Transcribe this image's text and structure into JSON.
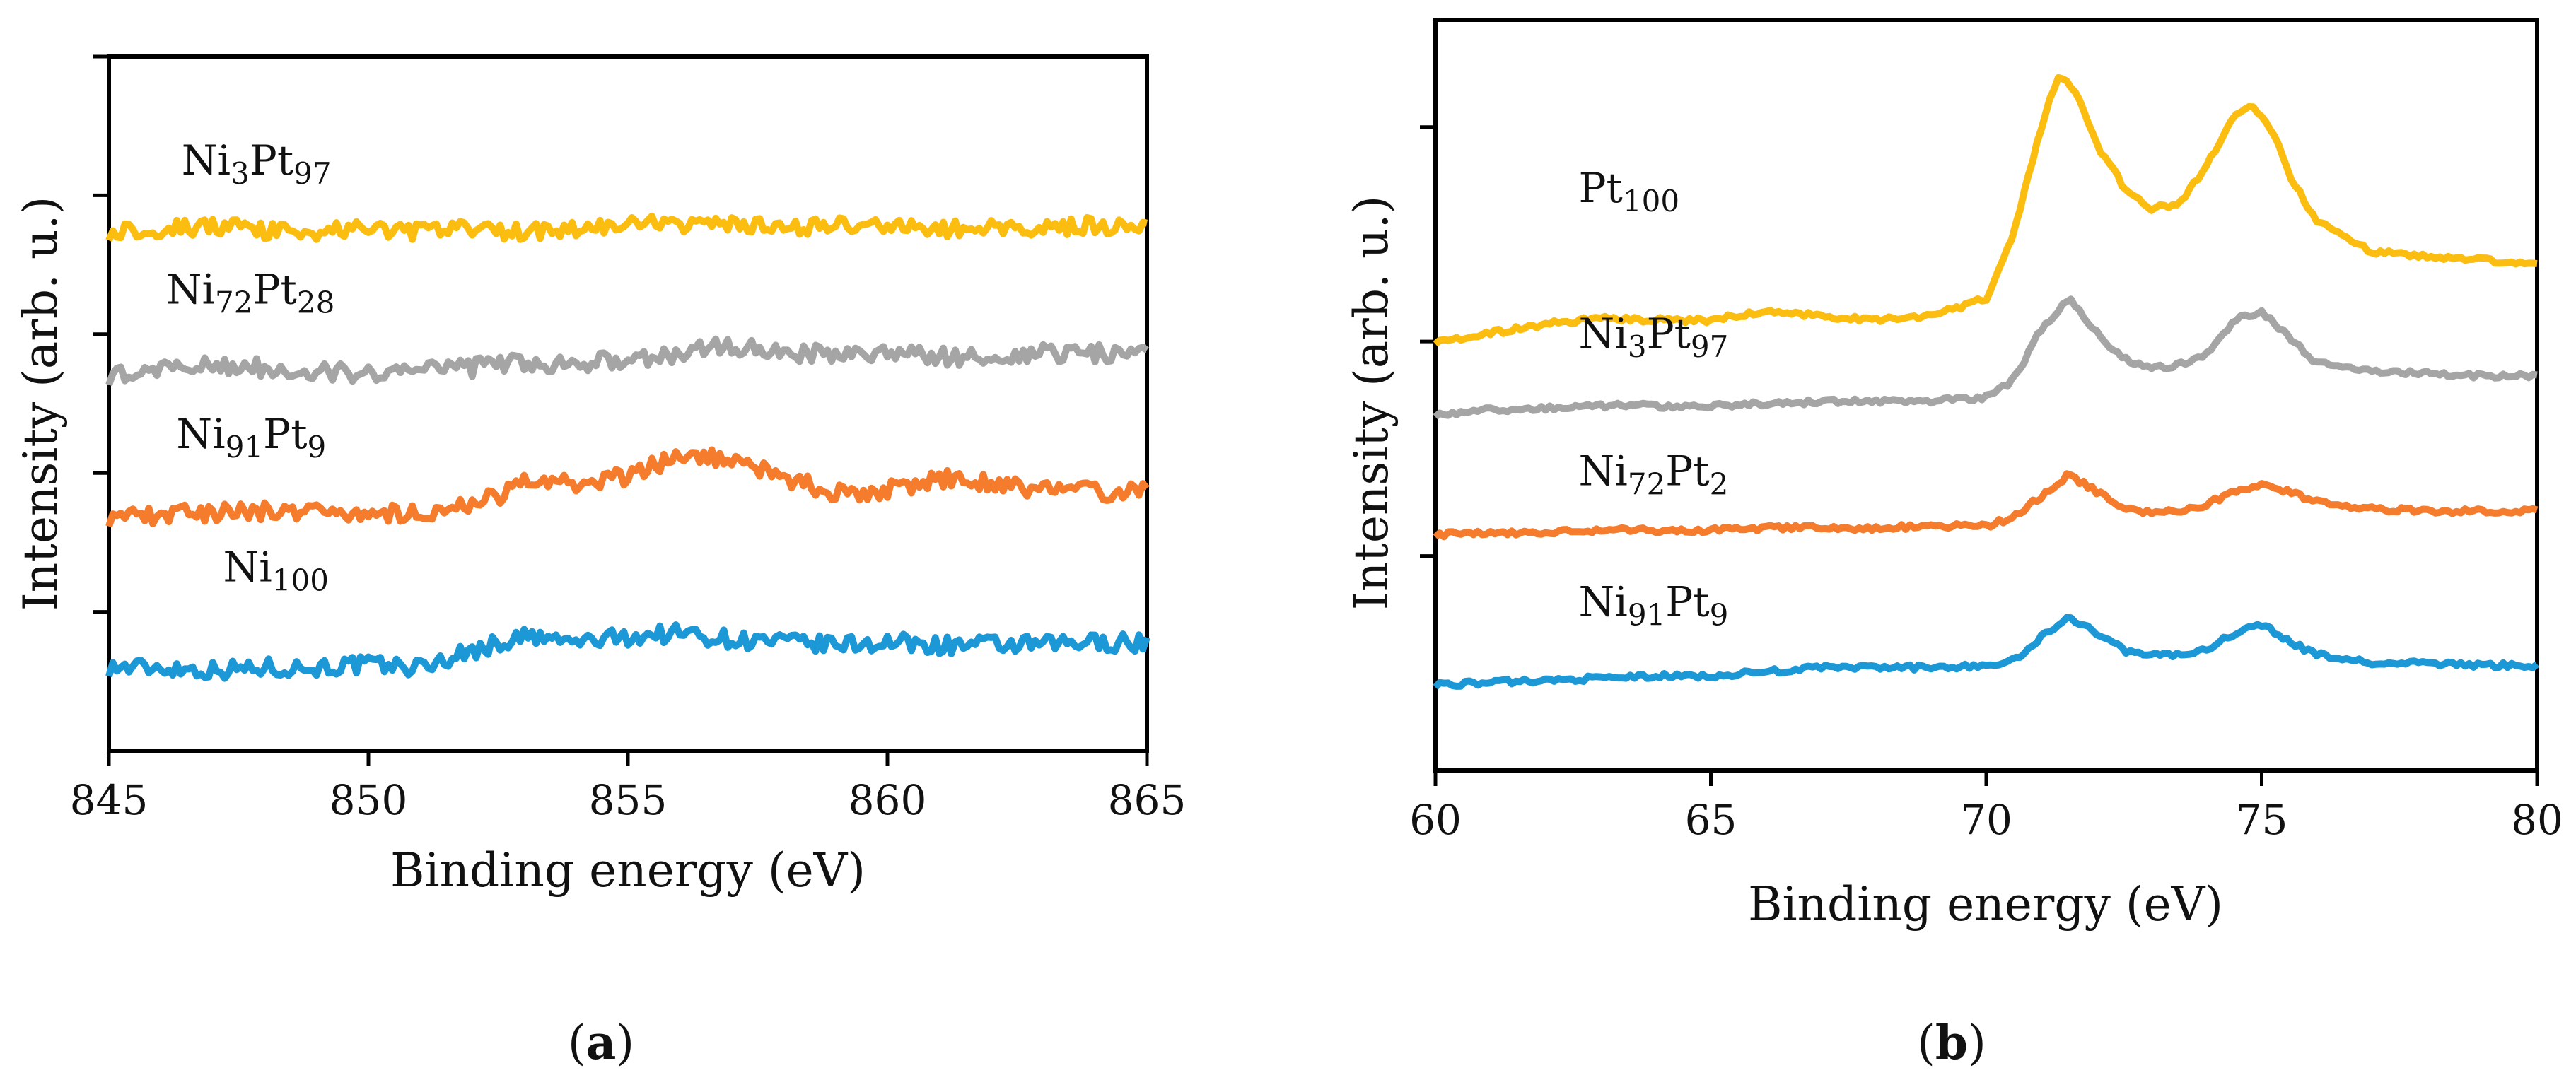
{
  "chart_data": [
    {
      "type": "line",
      "panel": "a",
      "caption": {
        "open": "(",
        "letter": "a",
        "close": ")"
      },
      "xlabel": "Binding energy (eV)",
      "ylabel": "Intensity (arb. u.)",
      "xlim": [
        845,
        865
      ],
      "ylim": [
        0,
        5
      ],
      "x_ticks": [
        845,
        850,
        855,
        860,
        865
      ],
      "x_tick_labels": [
        "845",
        "850",
        "855",
        "860",
        "865"
      ],
      "y_ticks": [
        1,
        2,
        3,
        4,
        5
      ],
      "grid": false,
      "noise": 0.065,
      "series": [
        {
          "name": "Ni100",
          "label": {
            "base": "Ni",
            "sub": "100"
          },
          "color": "#1b98d5",
          "label_at": [
            847.2,
            1.22
          ],
          "points": [
            [
              845,
              0.6
            ],
            [
              846,
              0.6
            ],
            [
              847,
              0.58
            ],
            [
              848,
              0.6
            ],
            [
              849,
              0.6
            ],
            [
              850,
              0.62
            ],
            [
              851,
              0.6
            ],
            [
              852,
              0.72
            ],
            [
              853,
              0.82
            ],
            [
              854,
              0.78
            ],
            [
              855,
              0.82
            ],
            [
              856,
              0.85
            ],
            [
              857,
              0.8
            ],
            [
              858,
              0.78
            ],
            [
              859,
              0.76
            ],
            [
              860,
              0.78
            ],
            [
              861,
              0.76
            ],
            [
              862,
              0.76
            ],
            [
              863,
              0.76
            ],
            [
              864,
              0.78
            ],
            [
              865,
              0.78
            ]
          ]
        },
        {
          "name": "Ni91Pt9",
          "label": {
            "base": "Ni",
            "sub": "91",
            "base2": "Pt",
            "sub2": "9"
          },
          "color": "#f47c2c",
          "label_at": [
            846.3,
            2.18
          ],
          "points": [
            [
              845,
              1.68
            ],
            [
              846,
              1.7
            ],
            [
              847,
              1.72
            ],
            [
              848,
              1.72
            ],
            [
              849,
              1.74
            ],
            [
              850,
              1.7
            ],
            [
              851,
              1.72
            ],
            [
              852,
              1.76
            ],
            [
              853,
              1.92
            ],
            [
              854,
              1.92
            ],
            [
              855,
              1.98
            ],
            [
              856,
              2.12
            ],
            [
              857,
              2.1
            ],
            [
              858,
              1.96
            ],
            [
              859,
              1.86
            ],
            [
              860,
              1.88
            ],
            [
              861,
              1.96
            ],
            [
              862,
              1.92
            ],
            [
              863,
              1.88
            ],
            [
              864,
              1.86
            ],
            [
              865,
              1.86
            ]
          ]
        },
        {
          "name": "Ni72Pt28",
          "label": {
            "base": "Ni",
            "sub": "72",
            "base2": "Pt",
            "sub2": "28"
          },
          "color": "#a5a5a5",
          "label_at": [
            846.1,
            3.22
          ],
          "points": [
            [
              845,
              2.7
            ],
            [
              846,
              2.74
            ],
            [
              847,
              2.78
            ],
            [
              848,
              2.76
            ],
            [
              849,
              2.74
            ],
            [
              850,
              2.72
            ],
            [
              851,
              2.74
            ],
            [
              852,
              2.76
            ],
            [
              853,
              2.8
            ],
            [
              854,
              2.78
            ],
            [
              855,
              2.82
            ],
            [
              856,
              2.86
            ],
            [
              857,
              2.92
            ],
            [
              858,
              2.88
            ],
            [
              859,
              2.84
            ],
            [
              860,
              2.86
            ],
            [
              861,
              2.84
            ],
            [
              862,
              2.84
            ],
            [
              863,
              2.86
            ],
            [
              864,
              2.86
            ],
            [
              865,
              2.86
            ]
          ]
        },
        {
          "name": "Ni3Pt97",
          "label": {
            "base": "Ni",
            "sub": "3",
            "base2": "Pt",
            "sub2": "97"
          },
          "color": "#fbbd10",
          "label_at": [
            846.4,
            4.15
          ],
          "points": [
            [
              845,
              3.74
            ],
            [
              846,
              3.76
            ],
            [
              847,
              3.78
            ],
            [
              848,
              3.74
            ],
            [
              849,
              3.74
            ],
            [
              850,
              3.76
            ],
            [
              851,
              3.74
            ],
            [
              852,
              3.76
            ],
            [
              853,
              3.74
            ],
            [
              854,
              3.76
            ],
            [
              855,
              3.78
            ],
            [
              856,
              3.8
            ],
            [
              857,
              3.78
            ],
            [
              858,
              3.76
            ],
            [
              859,
              3.78
            ],
            [
              860,
              3.78
            ],
            [
              861,
              3.76
            ],
            [
              862,
              3.76
            ],
            [
              863,
              3.78
            ],
            [
              864,
              3.78
            ],
            [
              865,
              3.78
            ]
          ]
        }
      ]
    },
    {
      "type": "line",
      "panel": "b",
      "caption": {
        "open": "(",
        "letter": "b",
        "close": ")"
      },
      "xlabel": "Binding energy (eV)",
      "ylabel": "Intensity (arb. u.)",
      "xlim": [
        60,
        80
      ],
      "ylim": [
        0,
        3.5
      ],
      "x_ticks": [
        60,
        65,
        70,
        75,
        80
      ],
      "x_tick_labels": [
        "60",
        "65",
        "70",
        "75",
        "80"
      ],
      "y_ticks": [
        1,
        2,
        3
      ],
      "grid": false,
      "noise": 0.012,
      "series": [
        {
          "name": "Ni91Pt9",
          "label": {
            "base": "Ni",
            "sub": "91",
            "base2": "Pt",
            "sub2": "9"
          },
          "color": "#1b98d5",
          "label_at": [
            62.6,
            0.72
          ],
          "points": [
            [
              60,
              0.4
            ],
            [
              61,
              0.41
            ],
            [
              62,
              0.42
            ],
            [
              63,
              0.43
            ],
            [
              64,
              0.44
            ],
            [
              65,
              0.44
            ],
            [
              66,
              0.46
            ],
            [
              67,
              0.48
            ],
            [
              68,
              0.48
            ],
            [
              69,
              0.48
            ],
            [
              70,
              0.49
            ],
            [
              70.5,
              0.51
            ],
            [
              71,
              0.62
            ],
            [
              71.5,
              0.72
            ],
            [
              72,
              0.64
            ],
            [
              72.5,
              0.56
            ],
            [
              73,
              0.54
            ],
            [
              73.5,
              0.54
            ],
            [
              74,
              0.56
            ],
            [
              74.5,
              0.64
            ],
            [
              75,
              0.68
            ],
            [
              75.5,
              0.6
            ],
            [
              76,
              0.54
            ],
            [
              77,
              0.5
            ],
            [
              78,
              0.5
            ],
            [
              79,
              0.49
            ],
            [
              80,
              0.49
            ]
          ]
        },
        {
          "name": "Ni72Pt2",
          "label": {
            "base": "Ni",
            "sub": "72",
            "base2": "Pt",
            "sub2": "2"
          },
          "color": "#f47c2c",
          "label_at": [
            62.6,
            1.33
          ],
          "points": [
            [
              60,
              1.1
            ],
            [
              61,
              1.11
            ],
            [
              62,
              1.11
            ],
            [
              63,
              1.12
            ],
            [
              64,
              1.12
            ],
            [
              65,
              1.12
            ],
            [
              66,
              1.13
            ],
            [
              67,
              1.13
            ],
            [
              68,
              1.13
            ],
            [
              69,
              1.14
            ],
            [
              70,
              1.14
            ],
            [
              70.5,
              1.18
            ],
            [
              71,
              1.28
            ],
            [
              71.5,
              1.38
            ],
            [
              72,
              1.3
            ],
            [
              72.5,
              1.22
            ],
            [
              73,
              1.2
            ],
            [
              73.5,
              1.21
            ],
            [
              74,
              1.24
            ],
            [
              74.5,
              1.3
            ],
            [
              75,
              1.34
            ],
            [
              75.5,
              1.3
            ],
            [
              76,
              1.25
            ],
            [
              77,
              1.22
            ],
            [
              78,
              1.21
            ],
            [
              79,
              1.21
            ],
            [
              80,
              1.21
            ]
          ]
        },
        {
          "name": "Ni3Pt97",
          "label": {
            "base": "Ni",
            "sub": "3",
            "base2": "Pt",
            "sub2": "97"
          },
          "color": "#a5a5a5",
          "label_at": [
            62.6,
            1.97
          ],
          "points": [
            [
              60,
              1.66
            ],
            [
              61,
              1.68
            ],
            [
              62,
              1.69
            ],
            [
              63,
              1.7
            ],
            [
              64,
              1.7
            ],
            [
              65,
              1.7
            ],
            [
              66,
              1.71
            ],
            [
              67,
              1.72
            ],
            [
              68,
              1.72
            ],
            [
              69,
              1.72
            ],
            [
              70,
              1.74
            ],
            [
              70.5,
              1.82
            ],
            [
              71,
              2.06
            ],
            [
              71.5,
              2.2
            ],
            [
              72,
              2.04
            ],
            [
              72.5,
              1.92
            ],
            [
              73,
              1.88
            ],
            [
              73.5,
              1.89
            ],
            [
              74,
              1.94
            ],
            [
              74.5,
              2.1
            ],
            [
              75,
              2.14
            ],
            [
              75.5,
              2.02
            ],
            [
              76,
              1.9
            ],
            [
              77,
              1.86
            ],
            [
              78,
              1.85
            ],
            [
              79,
              1.84
            ],
            [
              80,
              1.84
            ]
          ]
        },
        {
          "name": "Pt100",
          "label": {
            "base": "Pt",
            "sub": "100"
          },
          "color": "#fbbd10",
          "label_at": [
            62.6,
            2.65
          ],
          "points": [
            [
              60,
              2.0
            ],
            [
              61,
              2.04
            ],
            [
              62,
              2.08
            ],
            [
              63,
              2.11
            ],
            [
              64,
              2.1
            ],
            [
              65,
              2.1
            ],
            [
              66,
              2.14
            ],
            [
              67,
              2.12
            ],
            [
              68,
              2.1
            ],
            [
              69,
              2.12
            ],
            [
              70,
              2.2
            ],
            [
              70.5,
              2.5
            ],
            [
              71,
              3.0
            ],
            [
              71.3,
              3.24
            ],
            [
              71.6,
              3.18
            ],
            [
              72,
              2.92
            ],
            [
              72.5,
              2.72
            ],
            [
              73,
              2.62
            ],
            [
              73.5,
              2.64
            ],
            [
              74,
              2.82
            ],
            [
              74.5,
              3.06
            ],
            [
              74.8,
              3.1
            ],
            [
              75.2,
              2.98
            ],
            [
              75.5,
              2.78
            ],
            [
              76,
              2.56
            ],
            [
              77,
              2.42
            ],
            [
              78,
              2.4
            ],
            [
              79,
              2.38
            ],
            [
              80,
              2.36
            ]
          ]
        }
      ]
    }
  ]
}
